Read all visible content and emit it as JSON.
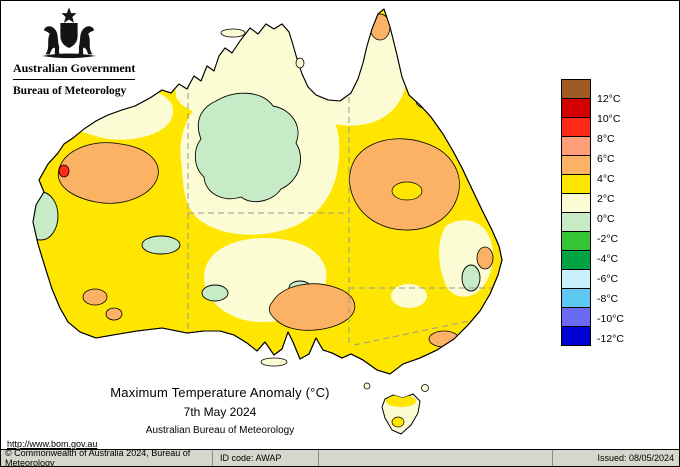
{
  "header": {
    "government": "Australian Government",
    "bureau": "Bureau of Meteorology"
  },
  "titles": {
    "main": "Maximum Temperature Anomaly (°C)",
    "date": "7th May 2024",
    "org": "Australian Bureau of Meteorology"
  },
  "legend": {
    "labels": [
      "12°C",
      "10°C",
      "8°C",
      "6°C",
      "4°C",
      "2°C",
      "0°C",
      "-2°C",
      "-4°C",
      "-6°C",
      "-8°C",
      "-10°C",
      "-12°C"
    ],
    "colors": [
      "#9E5B24",
      "#D40000",
      "#FF2B18",
      "#FF9E78",
      "#FBB264",
      "#FFE600",
      "#FCFCD4",
      "#C6EBC6",
      "#35C435",
      "#00A244",
      "#C8F0FA",
      "#5FC8F0",
      "#6A6AF5",
      "#0000D2"
    ]
  },
  "map": {
    "palette": {
      "yellow": "#FFE600",
      "cream": "#FCFCD4",
      "pale_green": "#C6EBC6",
      "orange": "#FBB264",
      "red": "#FF2B18",
      "outline": "#000000",
      "border_dash": "#999999"
    },
    "icons": {
      "crest": "australian-coat-of-arms"
    }
  },
  "footer": {
    "url": "http://www.bom.gov.au",
    "copyright": "© Commonwealth of Australia 2024, Bureau of Meteorology",
    "id_code": "ID code: AWAP",
    "issued": "Issued: 08/05/2024"
  }
}
